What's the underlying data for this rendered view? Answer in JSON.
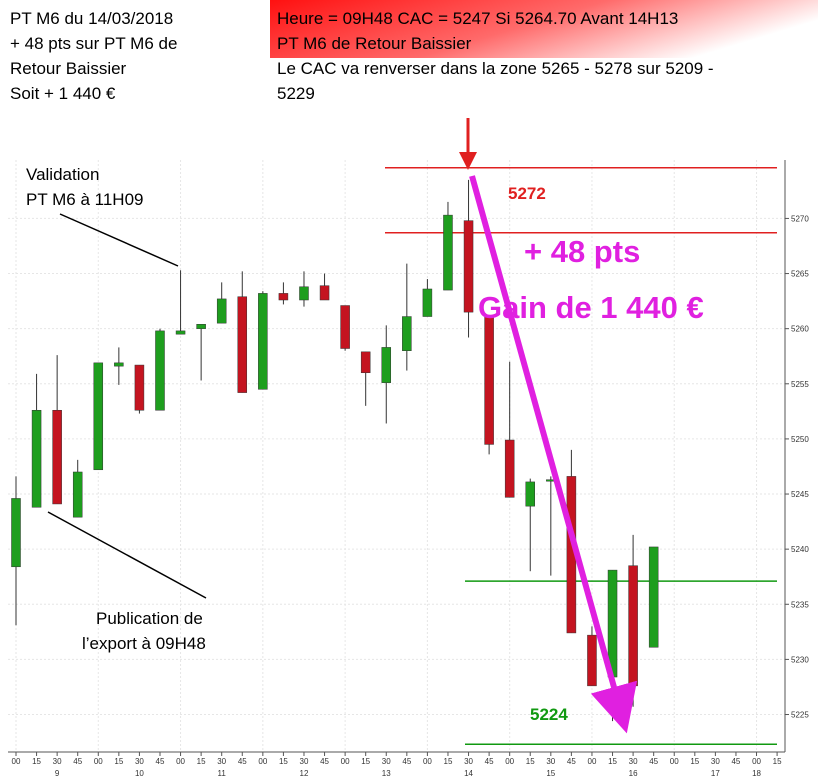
{
  "header": {
    "left": [
      "PT M6 du  14/03/2018",
      "+ 48 pts sur PT M6 de",
      "Retour Baissier",
      "Soit +  1 440 €"
    ],
    "right": [
      "Heure = 09H48 CAC = 5247 Si 5264.70 Avant 14H13",
      "PT M6 de Retour Baissier",
      "Le CAC va renverser dans la zone 5265 - 5278 sur 5209 -",
      "5229"
    ]
  },
  "annotations": {
    "validation": [
      "Validation",
      "PT M6  à 11H09"
    ],
    "publication": [
      "Publication de",
      "l’export à 09H48"
    ],
    "gain_pts": "+ 48 pts",
    "gain_eur": "Gain de 1 440 €",
    "high_label": "5272",
    "low_label": "5224"
  },
  "chart_data": {
    "type": "candlestick",
    "categories": [
      "00",
      "15",
      "30",
      "45",
      "00",
      "15",
      "30",
      "45",
      "00",
      "15",
      "30",
      "45",
      "00",
      "15",
      "30",
      "45",
      "00",
      "15",
      "30",
      "45",
      "00",
      "15",
      "30",
      "45",
      "00",
      "15",
      "30",
      "45",
      "00",
      "15",
      "30",
      "45",
      "00",
      "15",
      "30",
      "45",
      "00",
      "15"
    ],
    "hours": [
      null,
      null,
      "9",
      null,
      null,
      null,
      "10",
      null,
      null,
      null,
      "11",
      null,
      null,
      null,
      "12",
      null,
      null,
      null,
      "13",
      null,
      null,
      null,
      "14",
      null,
      null,
      null,
      "15",
      null,
      null,
      null,
      "16",
      null,
      null,
      null,
      "17",
      null,
      "18",
      null
    ],
    "open": [
      5238.4,
      5243.8,
      5252.6,
      5242.9,
      5247.2,
      5256.6,
      5256.7,
      5252.6,
      5259.5,
      5260.0,
      5260.5,
      5262.9,
      5254.5,
      5263.2,
      5262.6,
      5263.9,
      5262.1,
      5257.9,
      5255.1,
      5258.0,
      5261.1,
      5263.5,
      5269.8,
      5261.1,
      5249.9,
      5243.9,
      5246.2,
      5246.6,
      5232.2,
      5228.4,
      5238.5,
      5231.1,
      null,
      null,
      null,
      null,
      null,
      null
    ],
    "high": [
      5246.6,
      5255.9,
      5257.6,
      5248.1,
      5256.9,
      5258.3,
      5256.7,
      5260.0,
      5265.3,
      5260.4,
      5264.2,
      5265.2,
      5263.4,
      5264.2,
      5265.2,
      5265.0,
      5262.1,
      5257.9,
      5260.3,
      5265.9,
      5264.5,
      5271.5,
      5273.5,
      5261.1,
      5257.0,
      5246.4,
      5246.6,
      5249.0,
      5233.0,
      5238.1,
      5241.3,
      5240.2,
      null,
      null,
      null,
      null,
      null,
      null
    ],
    "low": [
      5233.1,
      5243.8,
      5244.1,
      5242.9,
      5247.2,
      5254.9,
      5252.3,
      5252.6,
      5259.5,
      5255.3,
      5260.5,
      5254.2,
      5254.5,
      5262.2,
      5262.0,
      5262.6,
      5258.0,
      5253.0,
      5251.4,
      5256.2,
      5261.1,
      5263.5,
      5259.2,
      5248.6,
      5244.7,
      5238.0,
      5237.6,
      5232.4,
      5227.6,
      5224.4,
      5225.7,
      5231.1,
      null,
      null,
      null,
      null,
      null,
      null
    ],
    "close": [
      5244.6,
      5252.6,
      5244.1,
      5247.0,
      5256.9,
      5256.9,
      5252.6,
      5259.8,
      5259.8,
      5260.4,
      5262.7,
      5254.2,
      5263.2,
      5262.6,
      5263.8,
      5262.6,
      5258.2,
      5256.0,
      5258.3,
      5261.1,
      5263.6,
      5270.3,
      5261.5,
      5249.5,
      5244.7,
      5246.1,
      5246.3,
      5232.4,
      5227.6,
      5238.1,
      5227.6,
      5240.2,
      null,
      null,
      null,
      null,
      null,
      null
    ],
    "up_color": "#1e9e1e",
    "down_color": "#c41420",
    "ylim": [
      5221.6,
      5275.3
    ],
    "yticks": [
      5225,
      5230,
      5235,
      5240,
      5245,
      5250,
      5255,
      5260,
      5265,
      5270
    ],
    "levels": [
      {
        "value": 5274.6,
        "color": "#e02020"
      },
      {
        "value": 5268.7,
        "color": "#e02020"
      },
      {
        "value": 5237.1,
        "color": "#119911"
      },
      {
        "value": 5222.3,
        "color": "#119911"
      }
    ],
    "grid": true
  }
}
